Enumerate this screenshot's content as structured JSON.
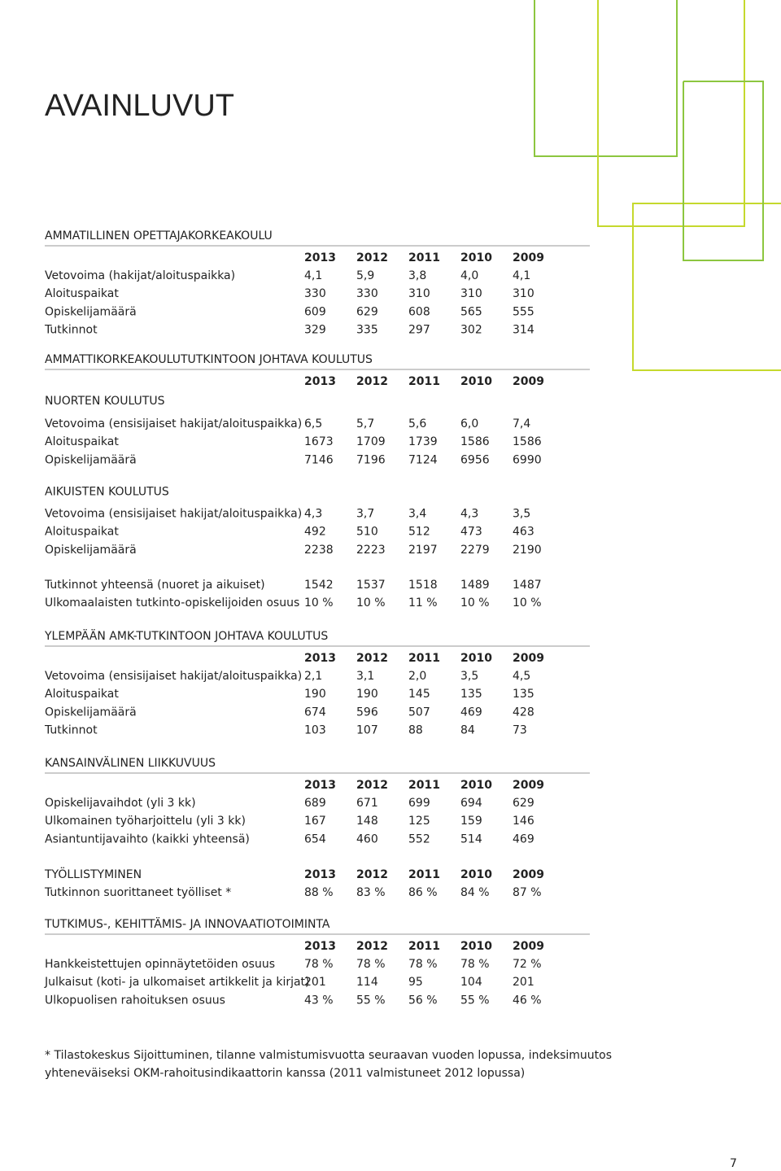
{
  "header": {
    "title": "AVAINLUVUT"
  },
  "sections": [
    {
      "title": "AMMATILLINEN OPETTAJAKORKEAKOULU",
      "years": [
        "2013",
        "2012",
        "2011",
        "2010",
        "2009"
      ],
      "groups": [
        {
          "rows": [
            {
              "label": "Vetovoima (hakijat/aloituspaikka)",
              "values": [
                "4,1",
                "5,9",
                "3,8",
                "4,0",
                "4,1"
              ]
            },
            {
              "label": "Aloituspaikat",
              "values": [
                "330",
                "330",
                "310",
                "310",
                "310"
              ]
            },
            {
              "label": "Opiskelijamäärä",
              "values": [
                "609",
                "629",
                "608",
                "565",
                "555"
              ]
            },
            {
              "label": "Tutkinnot",
              "values": [
                "329",
                "335",
                "297",
                "302",
                "314"
              ]
            }
          ]
        }
      ]
    },
    {
      "title": "AMMATTIKORKEAKOULUTUTKINTOON JOHTAVA KOULUTUS",
      "years": [
        "2013",
        "2012",
        "2011",
        "2010",
        "2009"
      ],
      "groups": [
        {
          "subtitle": "NUORTEN KOULUTUS",
          "rows": [
            {
              "label": "Vetovoima (ensisijaiset hakijat/aloituspaikka)",
              "values": [
                "6,5",
                "5,7",
                "5,6",
                "6,0",
                "7,4"
              ]
            },
            {
              "label": "Aloituspaikat",
              "values": [
                "1673",
                "1709",
                "1739",
                "1586",
                "1586"
              ]
            },
            {
              "label": "Opiskelijamäärä",
              "values": [
                "7146",
                "7196",
                "7124",
                "6956",
                "6990"
              ]
            }
          ]
        },
        {
          "subtitle": "AIKUISTEN KOULUTUS",
          "rows": [
            {
              "label": "Vetovoima (ensisijaiset hakijat/aloituspaikka)",
              "values": [
                "4,3",
                "3,7",
                "3,4",
                "4,3",
                "3,5"
              ]
            },
            {
              "label": "Aloituspaikat",
              "values": [
                "492",
                "510",
                "512",
                "473",
                "463"
              ]
            },
            {
              "label": "Opiskelijamäärä",
              "values": [
                "2238",
                "2223",
                "2197",
                "2279",
                "2190"
              ]
            }
          ]
        },
        {
          "rows": [
            {
              "label": "Tutkinnot yhteensä (nuoret ja aikuiset)",
              "values": [
                "1542",
                "1537",
                "1518",
                "1489",
                "1487"
              ]
            },
            {
              "label": "Ulkomaalaisten tutkinto-opiskelijoiden osuus",
              "values": [
                "10 %",
                "10 %",
                "11 %",
                "10 %",
                "10 %"
              ]
            }
          ]
        }
      ]
    },
    {
      "title": "YLEMPÄÄN AMK-TUTKINTOON JOHTAVA KOULUTUS",
      "years": [
        "2013",
        "2012",
        "2011",
        "2010",
        "2009"
      ],
      "groups": [
        {
          "rows": [
            {
              "label": "Vetovoima (ensisijaiset hakijat/aloituspaikka)",
              "values": [
                "2,1",
                "3,1",
                "2,0",
                "3,5",
                "4,5"
              ]
            },
            {
              "label": "Aloituspaikat",
              "values": [
                "190",
                "190",
                "145",
                "135",
                "135"
              ]
            },
            {
              "label": "Opiskelijamäärä",
              "values": [
                "674",
                "596",
                "507",
                "469",
                "428"
              ]
            },
            {
              "label": "Tutkinnot",
              "values": [
                "103",
                "107",
                "88",
                "84",
                "73"
              ]
            }
          ]
        }
      ]
    },
    {
      "title": "KANSAINVÄLINEN LIIKKUVUUS",
      "years": [
        "2013",
        "2012",
        "2011",
        "2010",
        "2009"
      ],
      "groups": [
        {
          "rows": [
            {
              "label": "Opiskelijavaihdot (yli 3 kk)",
              "values": [
                "689",
                "671",
                "699",
                "694",
                "629"
              ]
            },
            {
              "label": "Ulkomainen työharjoittelu (yli 3 kk)",
              "values": [
                "167",
                "148",
                "125",
                "159",
                "146"
              ]
            },
            {
              "label": "Asiantuntijavaihto (kaikki yhteensä)",
              "values": [
                "654",
                "460",
                "552",
                "514",
                "469"
              ]
            }
          ]
        }
      ]
    },
    {
      "title": "TYÖLLISTYMINEN",
      "years": [
        "2013",
        "2012",
        "2011",
        "2010",
        "2009"
      ],
      "groups": [
        {
          "rows": [
            {
              "label": "Tutkinnon suorittaneet työlliset *",
              "values": [
                "88 %",
                "83 %",
                "86 %",
                "84 %",
                "87 %"
              ]
            }
          ]
        }
      ]
    },
    {
      "title": "TUTKIMUS-, KEHITTÄMIS- JA INNOVAATIOTOIMINTA",
      "years": [
        "2013",
        "2012",
        "2011",
        "2010",
        "2009"
      ],
      "groups": [
        {
          "rows": [
            {
              "label": "Hankkeistettujen opinnäytetöiden osuus",
              "values": [
                "78 %",
                "78 %",
                "78 %",
                "78 %",
                "72 %"
              ]
            },
            {
              "label": "Julkaisut (koti- ja ulkomaiset artikkelit ja kirjat)",
              "values": [
                "201",
                "114",
                "95",
                "104",
                "201"
              ]
            },
            {
              "label": "Ulkopuolisen rahoituksen osuus",
              "values": [
                "43 %",
                "55 %",
                "56 %",
                "55 %",
                "46 %"
              ]
            }
          ]
        }
      ]
    }
  ],
  "footnote": [
    "* Tilastokeskus Sijoittuminen, tilanne valmistumisvuotta seuraavan vuoden lopussa, indeksimuutos",
    "yhteneväiseksi OKM-rahoitusindikaattorin kanssa (2011 valmistuneet  2012 lopussa)"
  ],
  "page_number": "7"
}
